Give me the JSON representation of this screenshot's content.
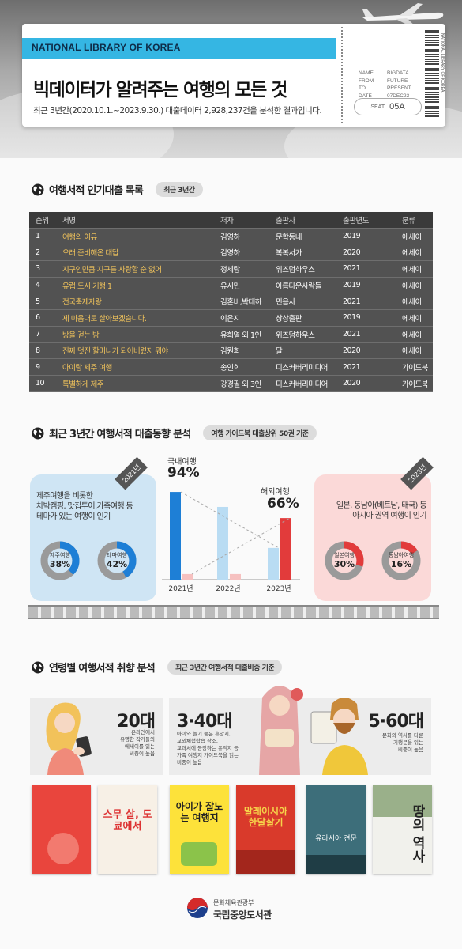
{
  "header": {
    "library": "NATIONAL LIBRARY OF KOREA",
    "title": "빅데이터가 알려주는 여행의 모든 것",
    "subtitle": "최근 3년간(2020.10.1.~2023.9.30.) 대출데이터 2,928,237건을 분석한 결과입니다.",
    "stub": [
      {
        "k": "NAME",
        "v": "BIGDATA"
      },
      {
        "k": "FROM",
        "v": "FUTURE"
      },
      {
        "k": "TO",
        "v": "PRESENT"
      },
      {
        "k": "DATE",
        "v": "07DEC23"
      }
    ],
    "seat_label": "SEAT",
    "seat_value": "05A",
    "barcode_text": "NATIONAL LIBRARY OF KOREA"
  },
  "section1": {
    "title": "여행서적 인기대출 목록",
    "badge": "최근 3년간",
    "columns": [
      "순위",
      "서명",
      "저자",
      "출판사",
      "출판년도",
      "분류"
    ],
    "rows": [
      [
        "1",
        "여행의 이유",
        "김영하",
        "문학동네",
        "2019",
        "에세이"
      ],
      [
        "2",
        "오래 준비해온 대답",
        "김영하",
        "복복서가",
        "2020",
        "에세이"
      ],
      [
        "3",
        "지구인만큼 지구를 사랑할 순 없어",
        "정세랑",
        "위즈덤하우스",
        "2021",
        "에세이"
      ],
      [
        "4",
        "유럽 도시 기행 1",
        "유시민",
        "아름다운사람들",
        "2019",
        "에세이"
      ],
      [
        "5",
        "전국축제자랑",
        "김혼비,박태하",
        "민음사",
        "2021",
        "에세이"
      ],
      [
        "6",
        "제 마음대로 살아보겠습니다.",
        "이은지",
        "상상출판",
        "2019",
        "에세이"
      ],
      [
        "7",
        "방을 걷는 밤",
        "유희열 외 1인",
        "위즈덤하우스",
        "2021",
        "에세이"
      ],
      [
        "8",
        "진짜 멋진 할머니가 되어버렸지 뭐야",
        "김원희",
        "달",
        "2020",
        "에세이"
      ],
      [
        "9",
        "아이랑 제주 여행",
        "송인희",
        "디스커버리미디어",
        "2021",
        "가이드북"
      ],
      [
        "10",
        "특별하게 제주",
        "강경필 외 3인",
        "디스커버리미디어",
        "2020",
        "가이드북"
      ]
    ]
  },
  "section2": {
    "title": "최근 3년간 여행서적 대출동향 분석",
    "badge": "여행 가이드북 대출상위 50권 기준",
    "left": {
      "tag": "2021년",
      "text": [
        "제주여행을 비롯한",
        "차박캠핑, 맛집투어,가족여행 등",
        "테마가 있는 여행이 인기"
      ],
      "donuts": [
        {
          "label": "제주여행",
          "value": "38%",
          "pct": 38
        },
        {
          "label": "테마여행",
          "value": "42%",
          "pct": 42
        }
      ]
    },
    "right": {
      "tag": "2023년",
      "text": [
        "일본, 동남아(베트남, 태국) 등",
        "아시아 권역 여행이 인기"
      ],
      "donuts": [
        {
          "label": "일본여행",
          "value": "30%",
          "pct": 30
        },
        {
          "label": "동남아여행",
          "value": "16%",
          "pct": 16
        }
      ]
    },
    "chart": {
      "domestic_label": "국내여행",
      "domestic_value": "94%",
      "overseas_label": "해외여행",
      "overseas_value": "66%",
      "years": [
        "2021년",
        "2022년",
        "2023년"
      ],
      "domestic": [
        94,
        78,
        34
      ],
      "overseas": [
        6,
        6,
        66
      ]
    }
  },
  "section3": {
    "title": "연령별 여행서적 취향 분석",
    "badge": "최근 3년간 여행서적 대출비중 기준",
    "groups": [
      {
        "age": "20대",
        "desc": [
          "온라인에서",
          "유명한 작가들의",
          "에세이를 읽는",
          "비중이 높음"
        ]
      },
      {
        "age": "3·40대",
        "desc": [
          "아이와 놀기 좋은 휴양지,",
          "교외체험학습 장소,",
          "교과서에 등장하는 유적지 등",
          "가족 여행지 가이드북을 읽는",
          "비중이 높음"
        ]
      },
      {
        "age": "5·60대",
        "desc": [
          "문화와 역사를 다룬",
          "기행문을 읽는",
          "비중이 높음"
        ]
      }
    ],
    "books": [
      {
        "title": "",
        "color": "#e9453d"
      },
      {
        "title": "스무 살, 도쿄에서",
        "color": "#f7f0e6"
      },
      {
        "title": "아이가 잘노는 여행지",
        "color": "#fde23a"
      },
      {
        "title": "말레이시아 한달살기",
        "color": "#d93a2b"
      },
      {
        "title": "유라시아 견문",
        "color": "#3d6e7a"
      },
      {
        "title": "땅의 역사",
        "color": "#f1f1ec"
      }
    ]
  },
  "footer": {
    "ministry": "문화체육관광부",
    "library": "국립중앙도서관"
  },
  "colors": {
    "accent_blue": "#1e7fd6",
    "accent_red": "#e23b3b",
    "ticket_band": "#35b6e3",
    "gold": "#f2c45c"
  }
}
